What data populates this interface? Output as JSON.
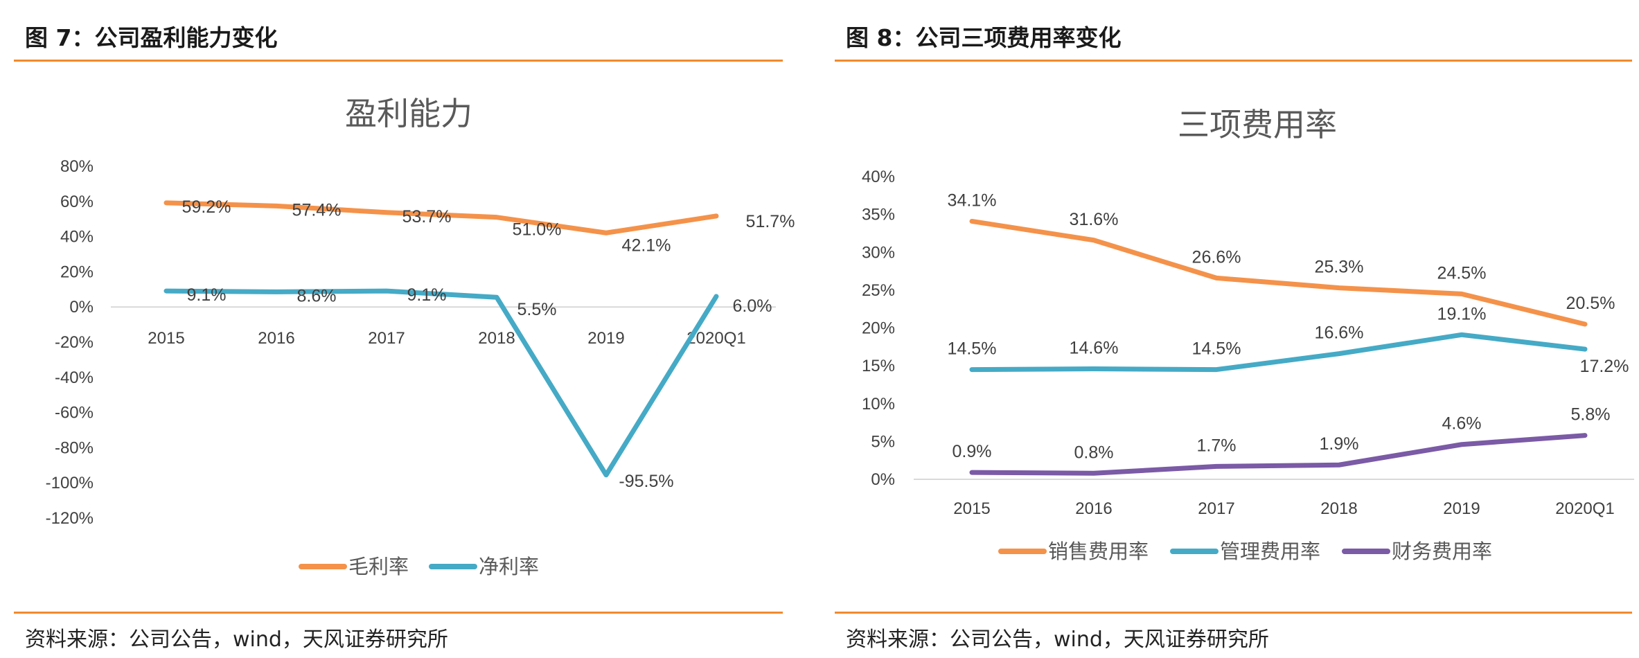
{
  "figures": [
    {
      "caption": "图 7：公司盈利能力变化",
      "source": "资料来源：公司公告，wind，天风证券研究所"
    },
    {
      "caption": "图 8：公司三项费用率变化",
      "source": "资料来源：公司公告，wind，天风证券研究所"
    }
  ],
  "chart_data": [
    {
      "type": "line",
      "title": "盈利能力",
      "categories": [
        "2015",
        "2016",
        "2017",
        "2018",
        "2019",
        "2020Q1"
      ],
      "y_ticks": [
        "80%",
        "60%",
        "40%",
        "20%",
        "0%",
        "-20%",
        "-40%",
        "-60%",
        "-80%",
        "-100%",
        "-120%"
      ],
      "ylim": [
        -120,
        80
      ],
      "grid": false,
      "legend_position": "bottom",
      "series": [
        {
          "name": "毛利率",
          "color": "#f4924a",
          "values": [
            59.2,
            57.4,
            53.7,
            51.0,
            42.1,
            51.7
          ],
          "labels": [
            "59.2%",
            "57.4%",
            "53.7%",
            "51.0%",
            "42.1%",
            "51.7%"
          ]
        },
        {
          "name": "净利率",
          "color": "#45aac6",
          "values": [
            9.1,
            8.6,
            9.1,
            5.5,
            -95.5,
            6.0
          ],
          "labels": [
            "9.1%",
            "8.6%",
            "9.1%",
            "5.5%",
            "-95.5%",
            "6.0%"
          ]
        }
      ]
    },
    {
      "type": "line",
      "title": "三项费用率",
      "categories": [
        "2015",
        "2016",
        "2017",
        "2018",
        "2019",
        "2020Q1"
      ],
      "y_ticks": [
        "40%",
        "35%",
        "30%",
        "25%",
        "20%",
        "15%",
        "10%",
        "5%",
        "0%"
      ],
      "ylim": [
        0,
        40
      ],
      "grid": false,
      "legend_position": "bottom",
      "series": [
        {
          "name": "销售费用率",
          "color": "#f4924a",
          "values": [
            34.1,
            31.6,
            26.6,
            25.3,
            24.5,
            20.5
          ],
          "labels": [
            "34.1%",
            "31.6%",
            "26.6%",
            "25.3%",
            "24.5%",
            "20.5%"
          ]
        },
        {
          "name": "管理费用率",
          "color": "#45aac6",
          "values": [
            14.5,
            14.6,
            14.5,
            16.6,
            19.1,
            17.2
          ],
          "labels": [
            "14.5%",
            "14.6%",
            "14.5%",
            "16.6%",
            "19.1%",
            "17.2%"
          ]
        },
        {
          "name": "财务费用率",
          "color": "#7b5aa6",
          "values": [
            0.9,
            0.8,
            1.7,
            1.9,
            4.6,
            5.8
          ],
          "labels": [
            "0.9%",
            "0.8%",
            "1.7%",
            "1.9%",
            "4.6%",
            "5.8%"
          ]
        }
      ]
    }
  ]
}
